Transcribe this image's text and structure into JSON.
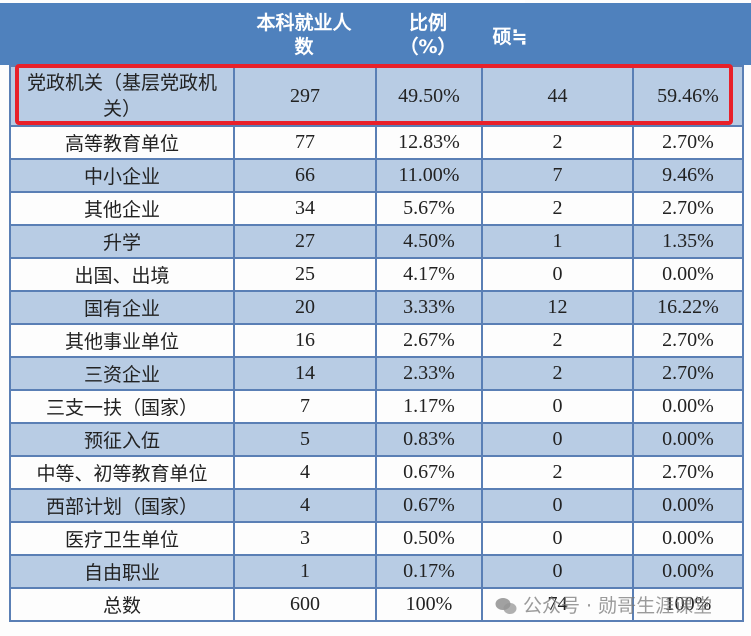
{
  "header": {
    "col1": "",
    "col2": "本科就业人数",
    "col2_line1": "本科就业人",
    "col2_line2": "数",
    "col3_line1": "比例",
    "col3_line2": "（%）",
    "col4": "硕士",
    "col4_visible": "硕≒",
    "col5": ""
  },
  "rows": [
    {
      "name": "党政机关（基层党政机关）",
      "undergrad": "297",
      "undergrad_pct": "49.50%",
      "master": "44",
      "master_pct": "59.46%"
    },
    {
      "name": "高等教育单位",
      "undergrad": "77",
      "undergrad_pct": "12.83%",
      "master": "2",
      "master_pct": "2.70%"
    },
    {
      "name": "中小企业",
      "undergrad": "66",
      "undergrad_pct": "11.00%",
      "master": "7",
      "master_pct": "9.46%"
    },
    {
      "name": "其他企业",
      "undergrad": "34",
      "undergrad_pct": "5.67%",
      "master": "2",
      "master_pct": "2.70%"
    },
    {
      "name": "升学",
      "undergrad": "27",
      "undergrad_pct": "4.50%",
      "master": "1",
      "master_pct": "1.35%"
    },
    {
      "name": "出国、出境",
      "undergrad": "25",
      "undergrad_pct": "4.17%",
      "master": "0",
      "master_pct": "0.00%"
    },
    {
      "name": "国有企业",
      "undergrad": "20",
      "undergrad_pct": "3.33%",
      "master": "12",
      "master_pct": "16.22%"
    },
    {
      "name": "其他事业单位",
      "undergrad": "16",
      "undergrad_pct": "2.67%",
      "master": "2",
      "master_pct": "2.70%"
    },
    {
      "name": "三资企业",
      "undergrad": "14",
      "undergrad_pct": "2.33%",
      "master": "2",
      "master_pct": "2.70%"
    },
    {
      "name": "三支一扶（国家）",
      "undergrad": "7",
      "undergrad_pct": "1.17%",
      "master": "0",
      "master_pct": "0.00%"
    },
    {
      "name": "预征入伍",
      "undergrad": "5",
      "undergrad_pct": "0.83%",
      "master": "0",
      "master_pct": "0.00%"
    },
    {
      "name": "中等、初等教育单位",
      "undergrad": "4",
      "undergrad_pct": "0.67%",
      "master": "2",
      "master_pct": "2.70%"
    },
    {
      "name": "西部计划（国家）",
      "undergrad": "4",
      "undergrad_pct": "0.67%",
      "master": "0",
      "master_pct": "0.00%"
    },
    {
      "name": "医疗卫生单位",
      "undergrad": "3",
      "undergrad_pct": "0.50%",
      "master": "0",
      "master_pct": "0.00%"
    },
    {
      "name": "自由职业",
      "undergrad": "1",
      "undergrad_pct": "0.17%",
      "master": "0",
      "master_pct": "0.00%"
    },
    {
      "name": "总数",
      "undergrad": "600",
      "undergrad_pct": "100%",
      "master": "74",
      "master_pct": "100%"
    }
  ],
  "watermark": "公众号 · 勋哥生涯课堂",
  "colors": {
    "header_bg": "#4f81bd",
    "alt_row_bg": "#b8cce4",
    "border": "#5a7fb5",
    "highlight": "#e8202a"
  }
}
